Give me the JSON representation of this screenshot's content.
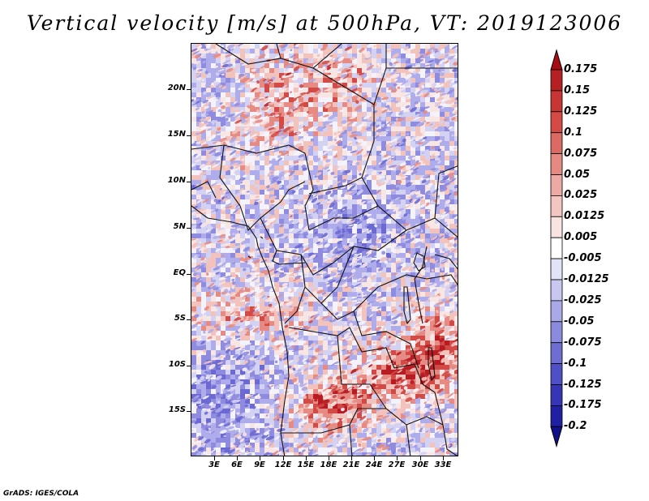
{
  "title": "Vertical velocity [m/s] at 500hPa, VT: 2019123006",
  "credit": "GrADS: IGES/COLA",
  "map": {
    "latitude_labels": [
      "20N",
      "15N",
      "10N",
      "5N",
      "EQ",
      "5S",
      "10S",
      "15S"
    ],
    "longitude_labels": [
      "3E",
      "6E",
      "9E",
      "12E",
      "15E",
      "18E",
      "21E",
      "24E",
      "27E",
      "30E",
      "33E"
    ]
  },
  "colorbar": {
    "labels": [
      "0.175",
      "0.15",
      "0.125",
      "0.1",
      "0.075",
      "0.05",
      "0.025",
      "0.0125",
      "0.005",
      "-0.005",
      "-0.0125",
      "-0.025",
      "-0.05",
      "-0.075",
      "-0.1",
      "-0.125",
      "-0.175",
      "-0.2"
    ],
    "colors": [
      "#a50d12",
      "#b52022",
      "#c73535",
      "#d44a47",
      "#dc6a64",
      "#e48a83",
      "#eda9a3",
      "#f3c6c1",
      "#f9e3e1",
      "#ffffff",
      "#e3e3f7",
      "#c7c7f0",
      "#a9a9e7",
      "#8b8bdd",
      "#6d6dd2",
      "#4f4fc6",
      "#3535b5",
      "#2020a3",
      "#10108a"
    ]
  }
}
